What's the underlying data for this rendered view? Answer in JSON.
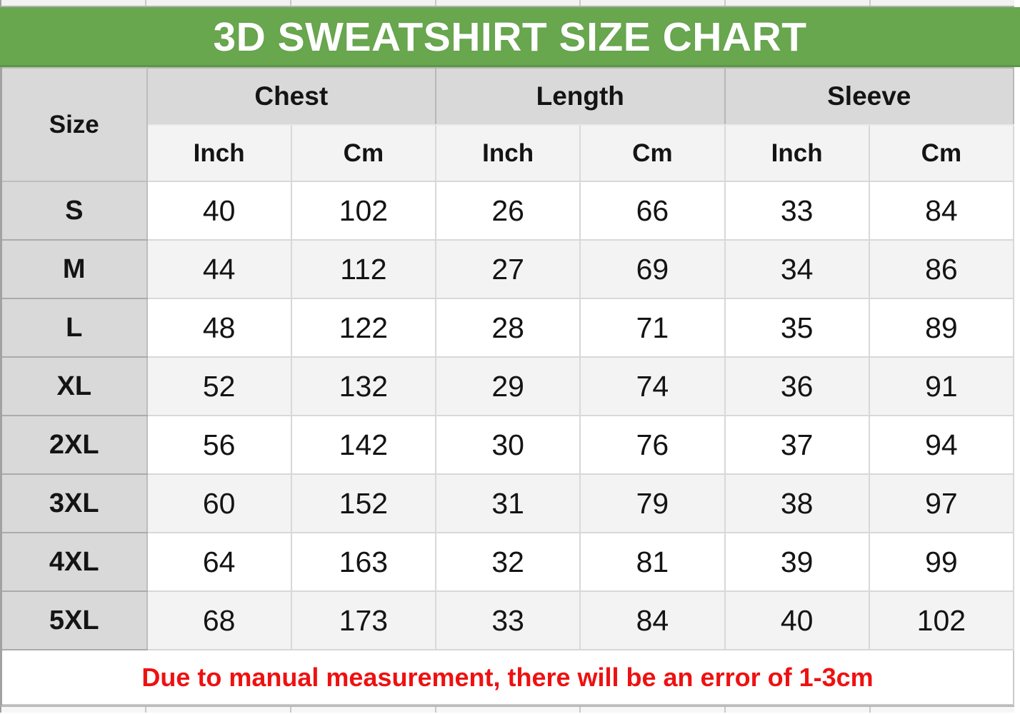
{
  "title": "3D SWEATSHIRT SIZE CHART",
  "note": "Due to manual measurement, there will be an error of 1-3cm",
  "table": {
    "size_header": "Size",
    "groups": [
      "Chest",
      "Length",
      "Sleeve"
    ],
    "sub_headers": [
      "Inch",
      "Cm",
      "Inch",
      "Cm",
      "Inch",
      "Cm"
    ]
  },
  "chart_data": {
    "type": "table",
    "title": "3D SWEATSHIRT SIZE CHART",
    "columns": [
      "Size",
      "Chest Inch",
      "Chest Cm",
      "Length Inch",
      "Length Cm",
      "Sleeve Inch",
      "Sleeve Cm"
    ],
    "rows": [
      [
        "S",
        40,
        102,
        26,
        66,
        33,
        84
      ],
      [
        "M",
        44,
        112,
        27,
        69,
        34,
        86
      ],
      [
        "L",
        48,
        122,
        28,
        71,
        35,
        89
      ],
      [
        "XL",
        52,
        132,
        29,
        74,
        36,
        91
      ],
      [
        "2XL",
        56,
        142,
        30,
        76,
        37,
        94
      ],
      [
        "3XL",
        60,
        152,
        31,
        79,
        38,
        97
      ],
      [
        "4XL",
        64,
        163,
        32,
        81,
        39,
        99
      ],
      [
        "5XL",
        68,
        173,
        33,
        84,
        40,
        102
      ]
    ],
    "note": "Due to manual measurement, there will be an error of 1-3cm"
  },
  "colors": {
    "header_green": "#68a74e",
    "header_gray": "#d9d9d9",
    "zebra_gray": "#f3f3f3",
    "note_red": "#ee1111"
  }
}
